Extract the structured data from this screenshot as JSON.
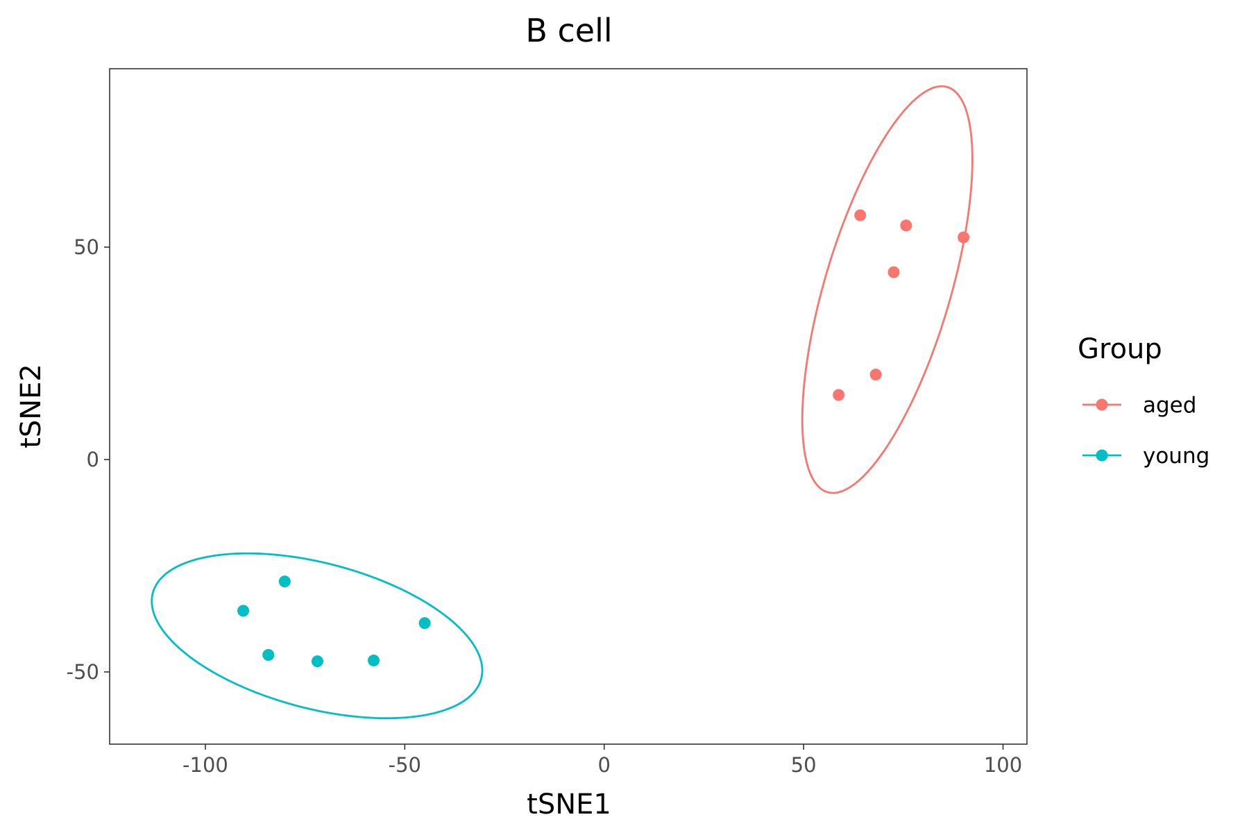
{
  "chart_data": {
    "type": "scatter",
    "title": "B cell",
    "xlabel": "tSNE1",
    "ylabel": "tSNE2",
    "xlim": [
      -124,
      106
    ],
    "ylim": [
      -67,
      92
    ],
    "x_ticks": [
      -100,
      -50,
      0,
      50,
      100
    ],
    "x_tick_labels": [
      "-100",
      "-50",
      "0",
      "50",
      "100"
    ],
    "y_ticks": [
      -50,
      0,
      50
    ],
    "y_tick_labels": [
      "-50",
      "0",
      "50"
    ],
    "grid": false,
    "legend": {
      "title": "Group",
      "placement": "right"
    },
    "series": [
      {
        "name": "aged",
        "color": "#F8766D",
        "points": [
          {
            "x": 64.2,
            "y": 57.5
          },
          {
            "x": 75.7,
            "y": 55.1
          },
          {
            "x": 90.1,
            "y": 52.3
          },
          {
            "x": 72.6,
            "y": 44.1
          },
          {
            "x": 68.1,
            "y": 20.0
          },
          {
            "x": 58.8,
            "y": 15.2
          }
        ],
        "ellipse": {
          "cx": 71.0,
          "cy": 40.0,
          "semi_major": 50.0,
          "semi_minor": 15.7,
          "angle_deg": 72.3
        }
      },
      {
        "name": "young",
        "color": "#00BFC4",
        "points": [
          {
            "x": -80.1,
            "y": -28.7
          },
          {
            "x": -90.5,
            "y": -35.6
          },
          {
            "x": -45.0,
            "y": -38.5
          },
          {
            "x": -84.2,
            "y": -46.0
          },
          {
            "x": -71.9,
            "y": -47.5
          },
          {
            "x": -57.8,
            "y": -47.3
          }
        ],
        "ellipse": {
          "cx": -72.0,
          "cy": -41.5,
          "semi_major": 42.4,
          "semi_minor": 17.2,
          "angle_deg": -13.4
        }
      }
    ]
  }
}
